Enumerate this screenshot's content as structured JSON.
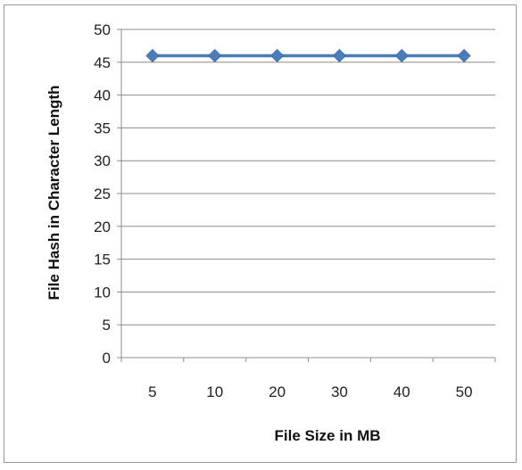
{
  "chart_data": {
    "type": "line",
    "categories": [
      "5",
      "10",
      "20",
      "30",
      "40",
      "50"
    ],
    "series": [
      {
        "values": [
          46,
          46,
          46,
          46,
          46,
          46
        ],
        "color": "#4a7ebb",
        "marker": "diamond"
      }
    ],
    "xlabel": "File Size in MB",
    "ylabel": "File Hash in Character Length",
    "ylim": [
      0,
      50
    ],
    "yticks": [
      0,
      5,
      10,
      15,
      20,
      25,
      30,
      35,
      40,
      45,
      50
    ],
    "grid": true,
    "legend": "none"
  }
}
